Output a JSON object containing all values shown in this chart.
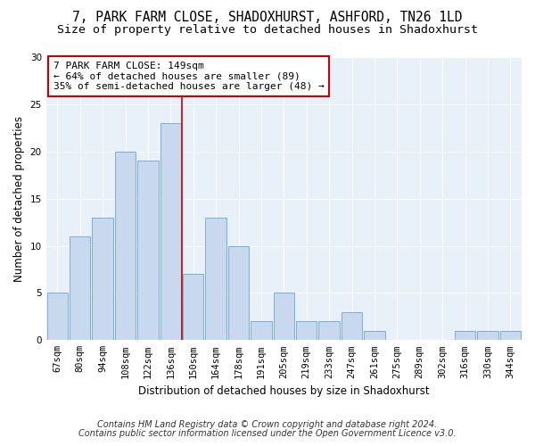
{
  "title1": "7, PARK FARM CLOSE, SHADOXHURST, ASHFORD, TN26 1LD",
  "title2": "Size of property relative to detached houses in Shadoxhurst",
  "xlabel": "Distribution of detached houses by size in Shadoxhurst",
  "ylabel": "Number of detached properties",
  "bin_labels": [
    "67sqm",
    "80sqm",
    "94sqm",
    "108sqm",
    "122sqm",
    "136sqm",
    "150sqm",
    "164sqm",
    "178sqm",
    "191sqm",
    "205sqm",
    "219sqm",
    "233sqm",
    "247sqm",
    "261sqm",
    "275sqm",
    "289sqm",
    "302sqm",
    "316sqm",
    "330sqm",
    "344sqm"
  ],
  "bar_values": [
    5,
    11,
    13,
    20,
    19,
    23,
    7,
    13,
    10,
    2,
    5,
    2,
    2,
    3,
    1,
    0,
    0,
    0,
    1,
    1,
    1
  ],
  "bar_color": "#c8d8ee",
  "bar_edge_color": "#7bafd4",
  "marker_line_color": "#cc0000",
  "annotation_line1": "7 PARK FARM CLOSE: 149sqm",
  "annotation_line2": "← 64% of detached houses are smaller (89)",
  "annotation_line3": "35% of semi-detached houses are larger (48) →",
  "annotation_box_color": "#ffffff",
  "annotation_box_edge": "#cc0000",
  "ylim": [
    0,
    30
  ],
  "yticks": [
    0,
    5,
    10,
    15,
    20,
    25,
    30
  ],
  "footnote1": "Contains HM Land Registry data © Crown copyright and database right 2024.",
  "footnote2": "Contains public sector information licensed under the Open Government Licence v3.0.",
  "fig_bg_color": "#ffffff",
  "plot_bg_color": "#e8f0fa",
  "title1_fontsize": 10.5,
  "title2_fontsize": 9.5,
  "axis_label_fontsize": 8.5,
  "tick_fontsize": 7.5,
  "annotation_fontsize": 8,
  "footnote_fontsize": 7
}
